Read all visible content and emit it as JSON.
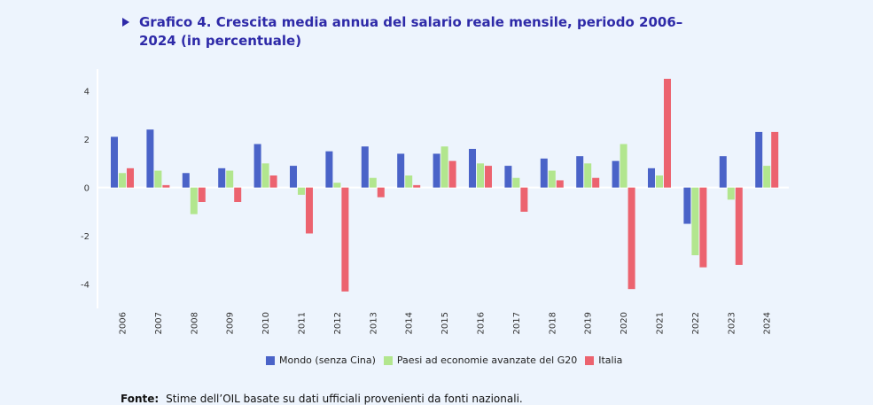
{
  "title": "Grafico 4. Crescita media annua del salario reale mensile, periodo 2006–2024 (in percentuale)",
  "source": {
    "label": "Fonte:",
    "text": "Stime dell’OIL basate su dati ufficiali provenienti da fonti nazionali."
  },
  "chart_data": {
    "type": "bar",
    "title": "Grafico 4. Crescita media annua del salario reale mensile, periodo 2006–2024 (in percentuale)",
    "xlabel": "",
    "ylabel": "",
    "ylim": [
      -5,
      4.9
    ],
    "yticks": [
      -4,
      -2,
      0,
      2,
      4
    ],
    "grid": false,
    "legend_position": "bottom",
    "categories": [
      "2006",
      "2007",
      "2008",
      "2009",
      "2010",
      "2011",
      "2012",
      "2013",
      "2014",
      "2015",
      "2016",
      "2017",
      "2018",
      "2019",
      "2020",
      "2021",
      "2022",
      "2023",
      "2024"
    ],
    "series": [
      {
        "name": "Mondo (senza Cina)",
        "color": "#4a63c8",
        "values": [
          2.1,
          2.4,
          0.6,
          0.8,
          1.8,
          0.9,
          1.5,
          1.7,
          1.4,
          1.4,
          1.6,
          0.9,
          1.2,
          1.3,
          1.1,
          0.8,
          -1.5,
          1.3,
          2.3
        ]
      },
      {
        "name": "Paesi ad economie avanzate del G20",
        "color": "#b2e68e",
        "values": [
          0.6,
          0.7,
          -1.1,
          0.7,
          1.0,
          -0.3,
          0.2,
          0.4,
          0.5,
          1.7,
          1.0,
          0.4,
          0.7,
          1.0,
          1.8,
          0.5,
          -2.8,
          -0.5,
          0.9
        ]
      },
      {
        "name": "Italia",
        "color": "#ec636f",
        "values": [
          0.8,
          0.1,
          -0.6,
          -0.6,
          0.5,
          -1.9,
          -4.3,
          -0.4,
          0.1,
          1.1,
          0.9,
          -1.0,
          0.3,
          0.4,
          -4.2,
          4.5,
          -3.3,
          -3.2,
          2.3
        ]
      }
    ]
  }
}
